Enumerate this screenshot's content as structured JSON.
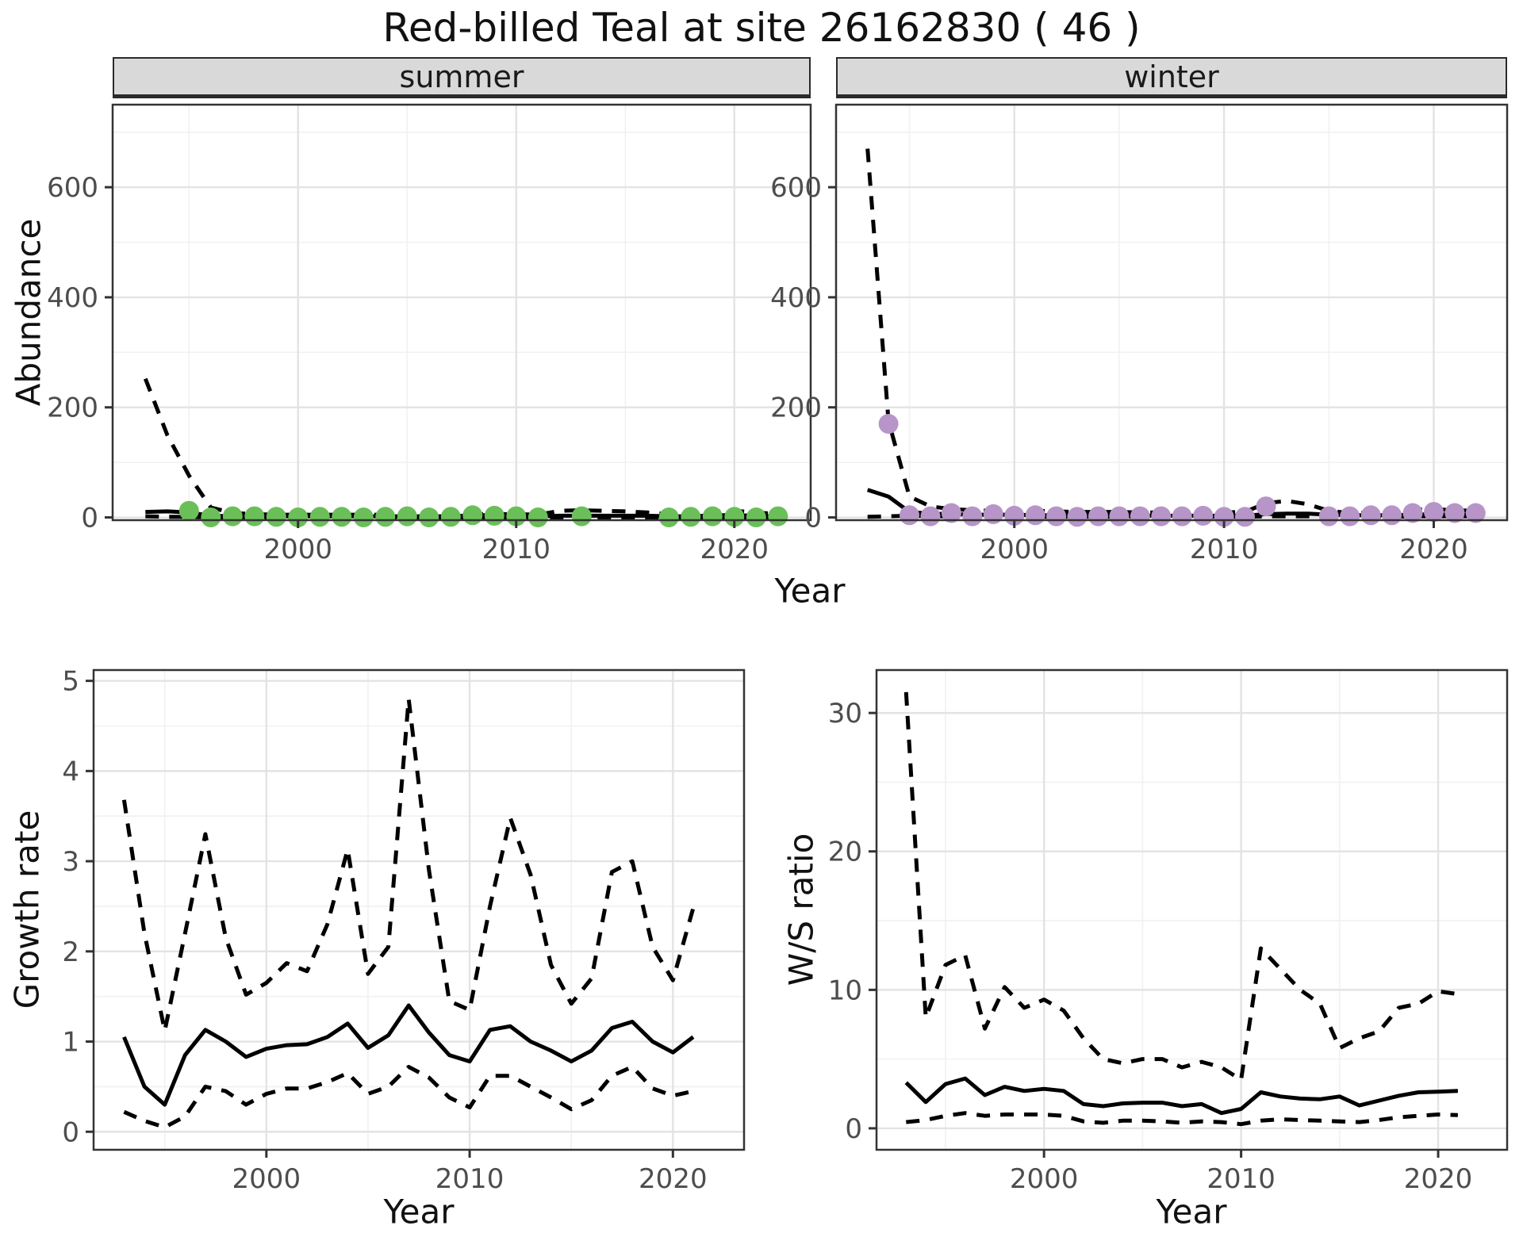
{
  "title": "Red-billed Teal at site 26162830 ( 46 )",
  "colors": {
    "summer_point": "#6abf59",
    "winter_point": "#b795c8",
    "line": "#000000",
    "grid_major": "#e3e3e3",
    "grid_minor": "#f1f1f1",
    "strip_bg": "#d9d9d9",
    "axis_text": "#4d4d4d",
    "panel_border": "#333333"
  },
  "chart_data": [
    {
      "id": "abundance-summer",
      "type": "line",
      "facet_label": "summer",
      "xlabel": "Year",
      "ylabel": "Abundance",
      "xlim": [
        1991.5,
        2023.5
      ],
      "ylim": [
        -5,
        750
      ],
      "x_ticks": [
        2000,
        2010,
        2020
      ],
      "x_minor": [
        1995,
        2005,
        2015
      ],
      "y_ticks": [
        0,
        200,
        400,
        600
      ],
      "y_minor": [
        100,
        300,
        500,
        700
      ],
      "years": [
        1993,
        1994,
        1995,
        1996,
        1997,
        1998,
        1999,
        2000,
        2001,
        2002,
        2003,
        2004,
        2005,
        2006,
        2007,
        2008,
        2009,
        2010,
        2011,
        2012,
        2013,
        2014,
        2015,
        2016,
        2017,
        2018,
        2019,
        2020,
        2021,
        2022
      ],
      "series": [
        {
          "name": "upper_ci",
          "style": "dashed",
          "values": [
            252,
            150,
            76,
            18,
            8,
            6,
            5,
            5,
            5,
            5,
            5,
            5,
            5,
            5,
            5,
            6,
            6,
            6,
            5,
            12,
            13,
            12,
            11,
            9,
            6,
            6,
            10,
            12,
            9,
            6
          ]
        },
        {
          "name": "median",
          "style": "solid",
          "values": [
            10,
            11,
            9,
            3,
            2,
            2,
            2,
            2,
            2,
            2,
            2,
            2,
            2,
            2,
            2,
            4,
            4,
            3,
            2,
            3,
            3,
            3,
            3,
            3,
            2,
            2,
            4,
            4,
            3,
            2
          ]
        },
        {
          "name": "lower_ci",
          "style": "dashed",
          "values": [
            2,
            1,
            1,
            0,
            0,
            0,
            0,
            0,
            0,
            0,
            0,
            0,
            0,
            0,
            0,
            0,
            0,
            0,
            0,
            0,
            0,
            0,
            0,
            0,
            0,
            0,
            0,
            0,
            0,
            0
          ]
        }
      ],
      "points": {
        "name": "observed_counts",
        "color": "#6abf59",
        "data": [
          [
            1995,
            12
          ],
          [
            1996,
            0
          ],
          [
            1997,
            2
          ],
          [
            1998,
            2
          ],
          [
            1999,
            1
          ],
          [
            2000,
            0
          ],
          [
            2001,
            1
          ],
          [
            2002,
            1
          ],
          [
            2003,
            0
          ],
          [
            2004,
            1
          ],
          [
            2005,
            2
          ],
          [
            2006,
            0
          ],
          [
            2007,
            1
          ],
          [
            2008,
            4
          ],
          [
            2009,
            3
          ],
          [
            2010,
            2
          ],
          [
            2011,
            0
          ],
          [
            2013,
            2
          ],
          [
            2017,
            0
          ],
          [
            2018,
            1
          ],
          [
            2019,
            2
          ],
          [
            2020,
            1
          ],
          [
            2021,
            0
          ],
          [
            2022,
            2
          ]
        ]
      }
    },
    {
      "id": "abundance-winter",
      "type": "line",
      "facet_label": "winter",
      "xlabel": "Year",
      "ylabel": "Abundance",
      "xlim": [
        1991.5,
        2023.5
      ],
      "ylim": [
        -5,
        750
      ],
      "x_ticks": [
        2000,
        2010,
        2020
      ],
      "x_minor": [
        1995,
        2005,
        2015
      ],
      "y_ticks": [
        0,
        200,
        400,
        600
      ],
      "y_minor": [
        100,
        300,
        500,
        700
      ],
      "years": [
        1993,
        1994,
        1995,
        1996,
        1997,
        1998,
        1999,
        2000,
        2001,
        2002,
        2003,
        2004,
        2005,
        2006,
        2007,
        2008,
        2009,
        2010,
        2011,
        2012,
        2013,
        2014,
        2015,
        2016,
        2017,
        2018,
        2019,
        2020,
        2021,
        2022
      ],
      "series": [
        {
          "name": "upper_ci",
          "style": "dashed",
          "values": [
            670,
            175,
            38,
            20,
            15,
            13,
            12,
            12,
            12,
            11,
            10,
            10,
            10,
            9,
            9,
            9,
            9,
            9,
            10,
            26,
            30,
            24,
            12,
            8,
            8,
            10,
            14,
            15,
            13,
            12
          ]
        },
        {
          "name": "median",
          "style": "solid",
          "values": [
            50,
            38,
            10,
            7,
            6,
            5,
            5,
            5,
            4,
            4,
            4,
            4,
            3,
            3,
            3,
            3,
            3,
            3,
            3,
            6,
            7,
            7,
            5,
            4,
            4,
            4,
            5,
            6,
            5,
            5
          ]
        },
        {
          "name": "lower_ci",
          "style": "dashed",
          "values": [
            1,
            2,
            3,
            2,
            2,
            2,
            2,
            1,
            1,
            1,
            1,
            1,
            1,
            1,
            1,
            1,
            1,
            1,
            1,
            2,
            2,
            2,
            1,
            1,
            1,
            1,
            2,
            2,
            2,
            2
          ]
        }
      ],
      "points": {
        "name": "observed_counts",
        "color": "#b795c8",
        "data": [
          [
            1994,
            170
          ],
          [
            1995,
            4
          ],
          [
            1996,
            2
          ],
          [
            1997,
            8
          ],
          [
            1998,
            2
          ],
          [
            1999,
            6
          ],
          [
            2000,
            3
          ],
          [
            2001,
            4
          ],
          [
            2002,
            2
          ],
          [
            2003,
            1
          ],
          [
            2004,
            2
          ],
          [
            2005,
            2
          ],
          [
            2006,
            2
          ],
          [
            2007,
            2
          ],
          [
            2008,
            2
          ],
          [
            2009,
            3
          ],
          [
            2010,
            1
          ],
          [
            2011,
            1
          ],
          [
            2012,
            20
          ],
          [
            2015,
            2
          ],
          [
            2016,
            2
          ],
          [
            2017,
            4
          ],
          [
            2018,
            4
          ],
          [
            2019,
            8
          ],
          [
            2020,
            10
          ],
          [
            2021,
            8
          ],
          [
            2022,
            8
          ]
        ]
      }
    },
    {
      "id": "growth-rate",
      "type": "line",
      "facet_label": "",
      "xlabel": "Year",
      "ylabel": "Growth rate",
      "xlim": [
        1991.5,
        2023.5
      ],
      "ylim": [
        -0.2,
        5.12
      ],
      "x_ticks": [
        2000,
        2010,
        2020
      ],
      "x_minor": [
        1995,
        2005,
        2015
      ],
      "y_ticks": [
        0,
        1,
        2,
        3,
        4,
        5
      ],
      "y_minor": [
        0.5,
        1.5,
        2.5,
        3.5,
        4.5
      ],
      "years": [
        1993,
        1994,
        1995,
        1996,
        1997,
        1998,
        1999,
        2000,
        2001,
        2002,
        2003,
        2004,
        2005,
        2006,
        2007,
        2008,
        2009,
        2010,
        2011,
        2012,
        2013,
        2014,
        2015,
        2016,
        2017,
        2018,
        2019,
        2020,
        2021
      ],
      "series": [
        {
          "name": "upper_ci",
          "style": "dashed",
          "values": [
            3.68,
            2.2,
            1.12,
            2.2,
            3.3,
            2.15,
            1.52,
            1.65,
            1.87,
            1.78,
            2.3,
            3.13,
            1.75,
            2.05,
            4.8,
            2.9,
            1.45,
            1.35,
            2.5,
            3.48,
            2.85,
            1.85,
            1.42,
            1.7,
            2.88,
            3.0,
            2.05,
            1.68,
            2.48
          ]
        },
        {
          "name": "median",
          "style": "solid",
          "values": [
            1.05,
            0.5,
            0.3,
            0.85,
            1.13,
            1.0,
            0.83,
            0.92,
            0.96,
            0.97,
            1.05,
            1.2,
            0.93,
            1.07,
            1.4,
            1.1,
            0.85,
            0.78,
            1.13,
            1.17,
            1.0,
            0.9,
            0.78,
            0.9,
            1.15,
            1.22,
            1.0,
            0.88,
            1.05
          ]
        },
        {
          "name": "lower_ci",
          "style": "dashed",
          "values": [
            0.22,
            0.12,
            0.05,
            0.17,
            0.5,
            0.45,
            0.3,
            0.42,
            0.48,
            0.48,
            0.55,
            0.65,
            0.42,
            0.5,
            0.72,
            0.6,
            0.38,
            0.27,
            0.62,
            0.62,
            0.5,
            0.38,
            0.25,
            0.35,
            0.62,
            0.72,
            0.48,
            0.4,
            0.45
          ]
        }
      ],
      "points": null
    },
    {
      "id": "ws-ratio",
      "type": "line",
      "facet_label": "",
      "xlabel": "Year",
      "ylabel": "W/S ratio",
      "xlim": [
        1991.5,
        2023.5
      ],
      "ylim": [
        -1.55,
        33.1
      ],
      "x_ticks": [
        2000,
        2010,
        2020
      ],
      "x_minor": [
        1995,
        2005,
        2015
      ],
      "y_ticks": [
        0,
        10,
        20,
        30
      ],
      "y_minor": [
        5,
        15,
        25
      ],
      "years": [
        1993,
        1994,
        1995,
        1996,
        1997,
        1998,
        1999,
        2000,
        2001,
        2002,
        2003,
        2004,
        2005,
        2006,
        2007,
        2008,
        2009,
        2010,
        2011,
        2012,
        2013,
        2014,
        2015,
        2016,
        2017,
        2018,
        2019,
        2020,
        2021
      ],
      "series": [
        {
          "name": "upper_ci",
          "style": "dashed",
          "values": [
            31.5,
            8.0,
            11.8,
            12.5,
            7.2,
            10.2,
            8.7,
            9.3,
            8.5,
            6.5,
            5.0,
            4.7,
            5.0,
            5.0,
            4.4,
            4.8,
            4.4,
            3.5,
            13.0,
            11.5,
            10.0,
            9.0,
            5.8,
            6.5,
            7.0,
            8.7,
            9.0,
            9.9,
            9.7
          ]
        },
        {
          "name": "median",
          "style": "solid",
          "values": [
            3.3,
            1.9,
            3.2,
            3.6,
            2.4,
            3.0,
            2.7,
            2.85,
            2.7,
            1.75,
            1.6,
            1.8,
            1.85,
            1.85,
            1.6,
            1.75,
            1.1,
            1.4,
            2.6,
            2.3,
            2.15,
            2.1,
            2.3,
            1.65,
            2.0,
            2.35,
            2.6,
            2.65,
            2.7
          ]
        },
        {
          "name": "lower_ci",
          "style": "dashed",
          "values": [
            0.45,
            0.6,
            0.9,
            1.1,
            0.9,
            1.0,
            1.0,
            1.0,
            0.9,
            0.5,
            0.4,
            0.55,
            0.55,
            0.5,
            0.4,
            0.5,
            0.45,
            0.3,
            0.55,
            0.65,
            0.6,
            0.55,
            0.5,
            0.45,
            0.6,
            0.8,
            0.9,
            1.0,
            0.95
          ]
        }
      ],
      "points": null
    }
  ]
}
